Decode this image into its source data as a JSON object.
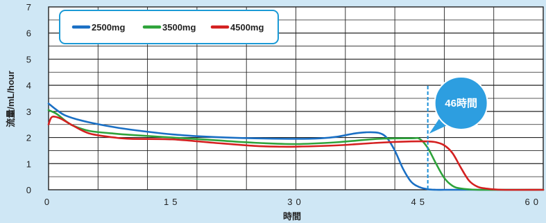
{
  "chart_data": {
    "type": "line",
    "title": "",
    "xlabel": "時間",
    "ylabel": "流量/mL/hour",
    "xlim": [
      0,
      60
    ],
    "ylim": [
      0,
      7
    ],
    "x_ticks": [
      "0",
      "15",
      "30",
      "45",
      "60"
    ],
    "y_ticks": [
      "0",
      "1",
      "2",
      "3",
      "4",
      "5",
      "6",
      "7"
    ],
    "grid": true,
    "legend_position": "top-left",
    "series": [
      {
        "name": "2500mg",
        "color": "#1a6fc4",
        "x": [
          0,
          1,
          2,
          4,
          7,
          10,
          15,
          20,
          25,
          30,
          33,
          35,
          37,
          38.5,
          40,
          41,
          42,
          43,
          44,
          45,
          46,
          47,
          48,
          50,
          55,
          60
        ],
        "y": [
          3.3,
          3.05,
          2.85,
          2.65,
          2.45,
          2.3,
          2.12,
          2.02,
          1.97,
          1.95,
          1.97,
          2.03,
          2.15,
          2.2,
          2.18,
          2.0,
          1.5,
          0.8,
          0.3,
          0.1,
          0.02,
          0,
          0,
          0,
          0,
          0
        ]
      },
      {
        "name": "3500mg",
        "color": "#2ea33a",
        "x": [
          0,
          1,
          2,
          3,
          5,
          8,
          10,
          15,
          20,
          25,
          30,
          35,
          40,
          44,
          45,
          46,
          47,
          48,
          49,
          50,
          52,
          55,
          60
        ],
        "y": [
          3.05,
          2.9,
          2.65,
          2.45,
          2.25,
          2.15,
          2.1,
          2.0,
          1.9,
          1.8,
          1.75,
          1.82,
          1.95,
          1.97,
          1.95,
          1.6,
          1.0,
          0.45,
          0.15,
          0.05,
          0,
          0,
          0
        ]
      },
      {
        "name": "4500mg",
        "color": "#d42020",
        "x": [
          0,
          0.3,
          0.7,
          1.5,
          3,
          5,
          8,
          10,
          15,
          20,
          25,
          28,
          30,
          35,
          40,
          44,
          46,
          47,
          48,
          49,
          50,
          51,
          52,
          53,
          55,
          60
        ],
        "y": [
          2.5,
          2.75,
          2.8,
          2.72,
          2.45,
          2.15,
          2.0,
          1.95,
          1.93,
          1.8,
          1.68,
          1.65,
          1.65,
          1.7,
          1.8,
          1.85,
          1.85,
          1.82,
          1.7,
          1.4,
          0.85,
          0.35,
          0.12,
          0.05,
          0,
          0
        ]
      }
    ],
    "annotations": [
      {
        "label": "46時間",
        "x": 46
      }
    ]
  }
}
